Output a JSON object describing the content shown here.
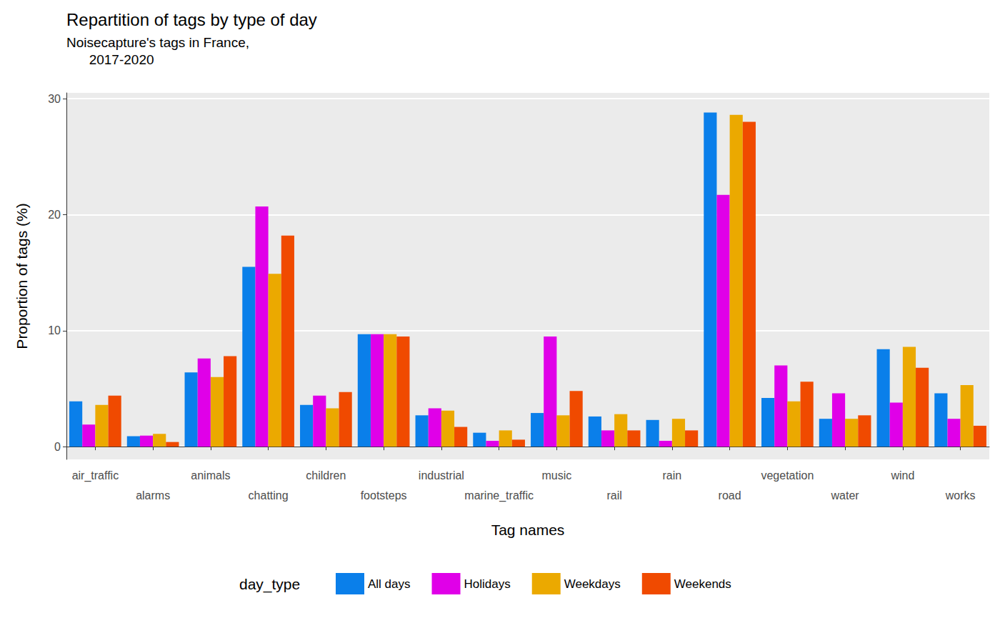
{
  "chart_data": {
    "type": "bar",
    "title": "Repartition of tags by type of day",
    "subtitle": "Noisecapture's tags in France,\n      2017-2020",
    "x_label": "Tag names",
    "y_label": "Proportion of tags (%)",
    "legend_title": "day_type",
    "legend": "bottom",
    "grid": true,
    "categories": [
      "air_traffic",
      "alarms",
      "animals",
      "chatting",
      "children",
      "footsteps",
      "industrial",
      "marine_traffic",
      "music",
      "rail",
      "rain",
      "road",
      "vegetation",
      "water",
      "wind",
      "works"
    ],
    "series": [
      {
        "name": "All days",
        "color": "#0A7FEA",
        "values": [
          3.9,
          0.9,
          6.4,
          15.5,
          3.6,
          9.7,
          2.7,
          1.2,
          2.9,
          2.6,
          2.3,
          28.8,
          4.2,
          2.4,
          8.4,
          4.6
        ]
      },
      {
        "name": "Holidays",
        "color": "#E000E8",
        "values": [
          1.9,
          0.95,
          7.6,
          20.7,
          4.4,
          9.7,
          3.3,
          0.5,
          9.5,
          1.4,
          0.5,
          21.7,
          7.0,
          4.6,
          3.8,
          2.4
        ]
      },
      {
        "name": "Weekdays",
        "color": "#EBA900",
        "values": [
          3.6,
          1.1,
          6.0,
          14.9,
          3.3,
          9.7,
          3.1,
          1.4,
          2.7,
          2.8,
          2.4,
          28.6,
          3.9,
          2.4,
          8.6,
          5.3
        ]
      },
      {
        "name": "Weekends",
        "color": "#F04A00",
        "values": [
          4.4,
          0.4,
          7.8,
          18.2,
          4.7,
          9.5,
          1.7,
          0.6,
          4.8,
          1.4,
          1.4,
          28.0,
          5.6,
          2.7,
          6.8,
          1.8
        ]
      }
    ],
    "ylim": [
      -1.1,
      30.5
    ],
    "yticks": [
      0,
      10,
      20,
      30
    ]
  }
}
